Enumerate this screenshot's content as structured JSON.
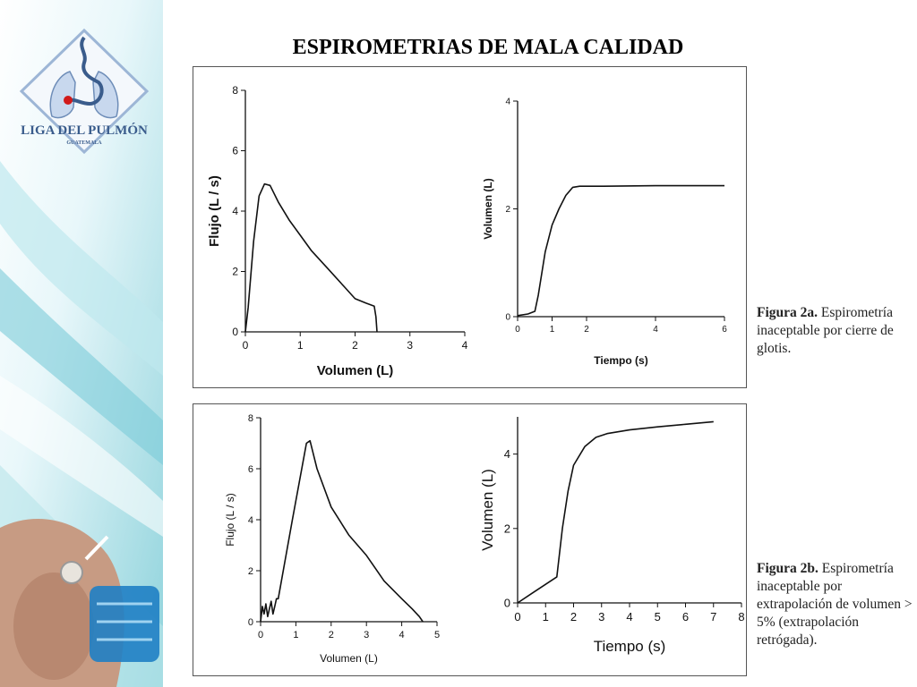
{
  "slide": {
    "title": "ESPIROMETRIAS DE MALA CALIDAD",
    "logo": {
      "name": "LIGA DEL PULMÓN",
      "sub": "GUATEMALA"
    },
    "colors": {
      "accent_teal": "#5fc4d0",
      "logo_blue": "#3a5c8c",
      "logo_red": "#d11a1a"
    }
  },
  "captions": [
    {
      "label": "Figura 2a.",
      "text": " Espirometría inaceptable por cierre de glotis."
    },
    {
      "label": "Figura 2b.",
      "text": " Espirometría inaceptable por extrapolación de volumen > 5% (extrapolación retrógada)."
    }
  ],
  "chart_data": [
    {
      "id": "2a-flow-volume",
      "type": "line",
      "xlabel": "Volumen (L)",
      "ylabel": "Flujo (L / s)",
      "xlim": [
        0,
        4
      ],
      "ylim": [
        0,
        8
      ],
      "xticks": [
        "0",
        "1",
        "2",
        "3",
        "4"
      ],
      "yticks": [
        "0",
        "2",
        "4",
        "6",
        "8"
      ],
      "series": [
        {
          "x": [
            0,
            0.05,
            0.15,
            0.25,
            0.35,
            0.45,
            0.6,
            0.8,
            1.0,
            1.2,
            1.5,
            1.8,
            2.0,
            2.2,
            2.35,
            2.38,
            2.4
          ],
          "y": [
            0,
            0.8,
            3.0,
            4.5,
            4.9,
            4.85,
            4.3,
            3.7,
            3.2,
            2.7,
            2.1,
            1.5,
            1.1,
            0.95,
            0.85,
            0.5,
            0
          ]
        }
      ]
    },
    {
      "id": "2a-volume-time",
      "type": "line",
      "xlabel": "Tiempo (s)",
      "ylabel": "Volumen (L)",
      "xlim": [
        0,
        6
      ],
      "ylim": [
        0,
        4
      ],
      "xticks": [
        "0",
        "1",
        "2",
        "4",
        "6"
      ],
      "xtick_values": [
        0,
        1,
        2,
        4,
        6
      ],
      "yticks": [
        "0",
        "2",
        "4"
      ],
      "series": [
        {
          "x": [
            0,
            0.3,
            0.5,
            0.6,
            0.8,
            1.0,
            1.2,
            1.4,
            1.6,
            1.8,
            2.5,
            4,
            6
          ],
          "y": [
            0.02,
            0.05,
            0.1,
            0.4,
            1.2,
            1.7,
            2.0,
            2.25,
            2.4,
            2.42,
            2.42,
            2.43,
            2.43
          ]
        }
      ]
    },
    {
      "id": "2b-flow-volume",
      "type": "line",
      "xlabel": "Volumen (L)",
      "ylabel": "Flujo (L / s)",
      "xlim": [
        0,
        5
      ],
      "ylim": [
        0,
        8
      ],
      "xticks": [
        "0",
        "1",
        "2",
        "3",
        "4",
        "5"
      ],
      "yticks": [
        "0",
        "2",
        "4",
        "6",
        "8"
      ],
      "series": [
        {
          "x": [
            0,
            0.05,
            0.1,
            0.15,
            0.2,
            0.25,
            0.3,
            0.35,
            0.4,
            0.45,
            0.5,
            0.9,
            1.3,
            1.4,
            1.6,
            2.0,
            2.5,
            3.0,
            3.5,
            4.0,
            4.3,
            4.5,
            4.6
          ],
          "y": [
            0,
            0.6,
            0.3,
            0.7,
            0.2,
            0.5,
            0.8,
            0.3,
            0.6,
            0.9,
            0.9,
            4.0,
            7.0,
            7.1,
            6.0,
            4.5,
            3.4,
            2.6,
            1.6,
            0.9,
            0.5,
            0.2,
            0
          ]
        }
      ]
    },
    {
      "id": "2b-volume-time",
      "type": "line",
      "xlabel": "Tiempo (s)",
      "ylabel": "Volumen  (L)",
      "xlim": [
        0,
        8
      ],
      "ylim": [
        0,
        5
      ],
      "xticks": [
        "0",
        "1",
        "2",
        "3",
        "4",
        "5",
        "6",
        "7",
        "8"
      ],
      "yticks": [
        "0",
        "2",
        "4"
      ],
      "series": [
        {
          "x": [
            0,
            0.5,
            1.0,
            1.4,
            1.6,
            1.8,
            2.0,
            2.4,
            2.8,
            3.2,
            4,
            5,
            6,
            7
          ],
          "y": [
            0,
            0.25,
            0.5,
            0.7,
            2.0,
            3.0,
            3.7,
            4.2,
            4.45,
            4.55,
            4.65,
            4.73,
            4.8,
            4.87
          ]
        }
      ]
    }
  ]
}
